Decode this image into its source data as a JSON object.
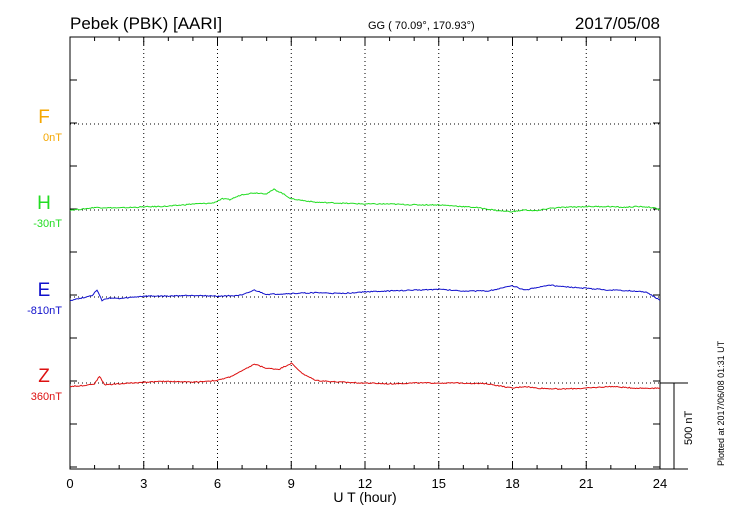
{
  "header": {
    "station": "Pebek (PBK)  [AARI]",
    "coords": "GG ( 70.09°, 170.93°)",
    "date": "2017/05/08"
  },
  "footer": {
    "plotted": "Plotted at 2017/06/08 01:31  UT"
  },
  "chart_data": {
    "type": "line",
    "xlabel": "U T (hour)",
    "xlim": [
      0,
      24
    ],
    "x_ticks": [
      "0",
      "3",
      "6",
      "9",
      "12",
      "15",
      "18",
      "21",
      "24"
    ],
    "grid": true,
    "scale_bar": {
      "label": "500 nT",
      "value_nT": 500
    },
    "series": [
      {
        "name": "F",
        "baseline": "0nT",
        "color": "#f5a700",
        "x": [],
        "y": []
      },
      {
        "name": "H",
        "baseline": "-30nT",
        "color": "#22dd22",
        "x": [
          0,
          0.5,
          1,
          2,
          3,
          4,
          5,
          5.8,
          6.2,
          6.5,
          7,
          7.5,
          8,
          8.3,
          8.6,
          9,
          9.5,
          10,
          11,
          12,
          13,
          14,
          15,
          16,
          16.5,
          17,
          17.5,
          18,
          18.5,
          19,
          19.5,
          20,
          21,
          22,
          22.5,
          23,
          23.5,
          24
        ],
        "y": [
          -30,
          -25,
          -15,
          -18,
          -12,
          -8,
          5,
          10,
          35,
          30,
          60,
          70,
          65,
          90,
          70,
          35,
          25,
          15,
          10,
          5,
          5,
          0,
          0,
          -10,
          -15,
          -25,
          -35,
          -40,
          -30,
          -35,
          -20,
          -15,
          -10,
          -10,
          -15,
          -10,
          -12,
          -25
        ]
      },
      {
        "name": "E",
        "baseline": "-810nT",
        "color": "#1010cc",
        "x": [
          0,
          0.5,
          0.9,
          1.1,
          1.3,
          1.6,
          2,
          3,
          4,
          5,
          6,
          7,
          7.5,
          8,
          9,
          10,
          11,
          12,
          13,
          14,
          15,
          16,
          17,
          18,
          18.5,
          19,
          19.5,
          20,
          21,
          22,
          23,
          23.5,
          24
        ],
        "y": [
          -830,
          -815,
          -800,
          -770,
          -830,
          -815,
          -820,
          -805,
          -805,
          -800,
          -805,
          -800,
          -770,
          -795,
          -790,
          -785,
          -790,
          -780,
          -775,
          -770,
          -765,
          -775,
          -775,
          -745,
          -770,
          -755,
          -740,
          -750,
          -760,
          -770,
          -775,
          -785,
          -830
        ]
      },
      {
        "name": "Z",
        "baseline": "360nT",
        "color": "#dd1111",
        "x": [
          0,
          0.5,
          1,
          1.2,
          1.4,
          2,
          3,
          4,
          5,
          6,
          6.5,
          7,
          7.5,
          8,
          8.5,
          9,
          9.5,
          10,
          11,
          12,
          13,
          14,
          15,
          16,
          17,
          18,
          18.5,
          19,
          20,
          21,
          22,
          23,
          24
        ],
        "y": [
          340,
          345,
          355,
          400,
          350,
          355,
          365,
          370,
          365,
          375,
          395,
          430,
          470,
          445,
          440,
          475,
          410,
          375,
          365,
          360,
          355,
          360,
          360,
          360,
          355,
          330,
          340,
          330,
          325,
          330,
          340,
          330,
          330
        ]
      }
    ]
  }
}
